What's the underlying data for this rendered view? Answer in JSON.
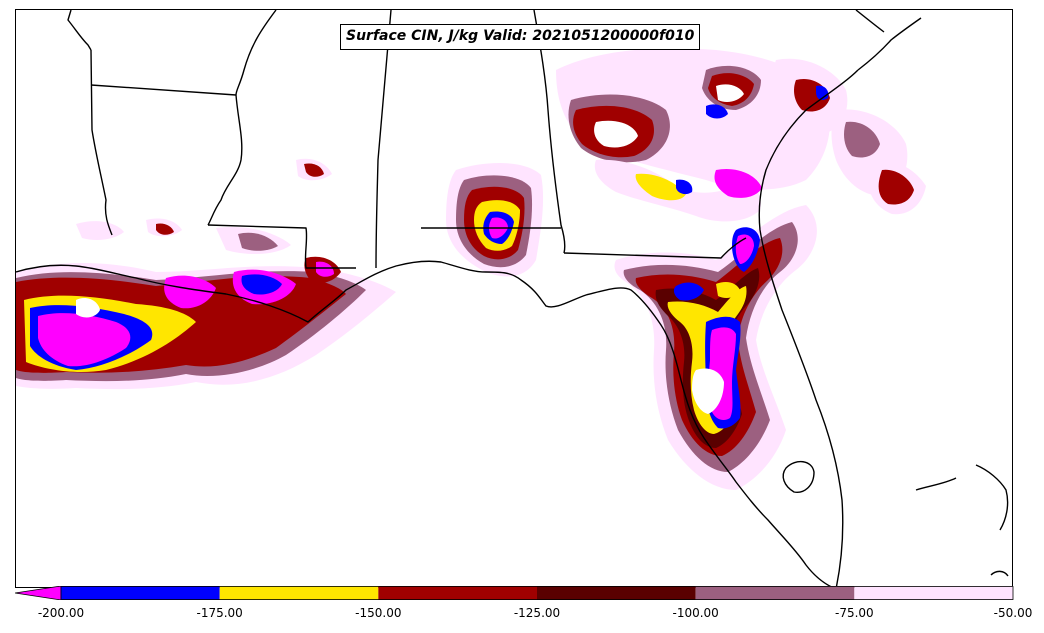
{
  "title": "Surface CIN, J/kg Valid: 2021051200000f010",
  "colorbar": {
    "extend": "min",
    "bins": [
      {
        "from": -200,
        "to": -175,
        "color": "#0000ff"
      },
      {
        "from": -175,
        "to": -150,
        "color": "#ffe600"
      },
      {
        "from": -150,
        "to": -125,
        "color": "#a00000"
      },
      {
        "from": -125,
        "to": -100,
        "color": "#5a0000"
      },
      {
        "from": -100,
        "to": -75,
        "color": "#9c6080"
      },
      {
        "from": -75,
        "to": -50,
        "color": "#ffe4ff"
      }
    ],
    "under_color": "#ff00ff",
    "tick_labels": [
      "-200.00",
      "-175.00",
      "-150.00",
      "-125.00",
      "-100.00",
      "-75.00",
      "-50.00"
    ]
  },
  "map": {
    "region": "Southeastern United States and northern Gulf of Mexico",
    "field": "Surface CIN",
    "units": "J/kg"
  }
}
